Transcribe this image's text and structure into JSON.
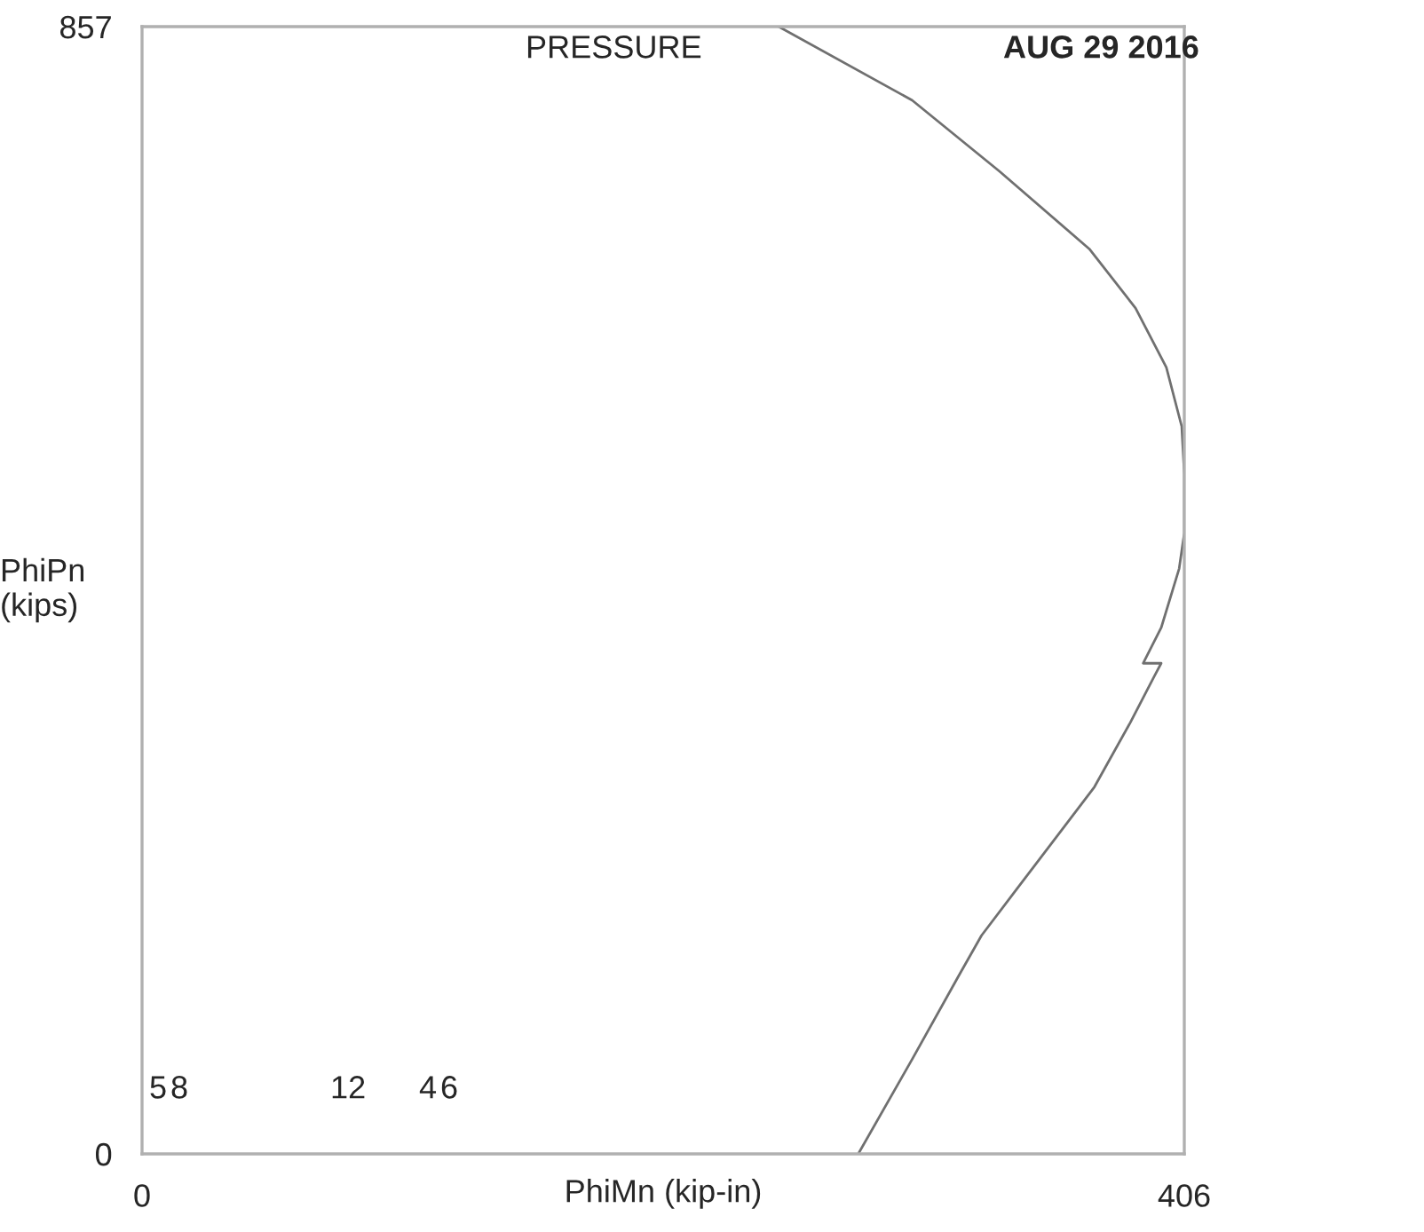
{
  "chart_data": {
    "type": "line",
    "xlabel": "PhiMn (kip-in)",
    "ylabel": "PhiPn\n(kips)",
    "x": [
      248,
      300,
      334,
      369,
      387,
      399,
      405,
      406,
      406,
      404,
      397,
      390,
      397,
      394,
      385,
      371,
      357,
      341,
      327,
      318,
      300,
      279
    ],
    "series": [
      {
        "color": "#707070",
        "values": [
          857,
          801,
          747,
          688,
          643,
          598,
          553,
          517,
          472,
          445,
          400,
          373,
          373,
          362,
          328,
          279,
          243,
          202,
          166,
          135,
          72,
          0
        ]
      }
    ],
    "xlim": [
      0,
      406
    ],
    "ylim": [
      0,
      857
    ],
    "xticks": [
      0,
      406
    ],
    "yticks": [
      0,
      857
    ],
    "legend": false,
    "marker": "none",
    "line_style": "solid",
    "annotations": [
      "5",
      "8",
      "12",
      "4",
      "6",
      "PRESSURE",
      "AUG 29 2016"
    ]
  }
}
